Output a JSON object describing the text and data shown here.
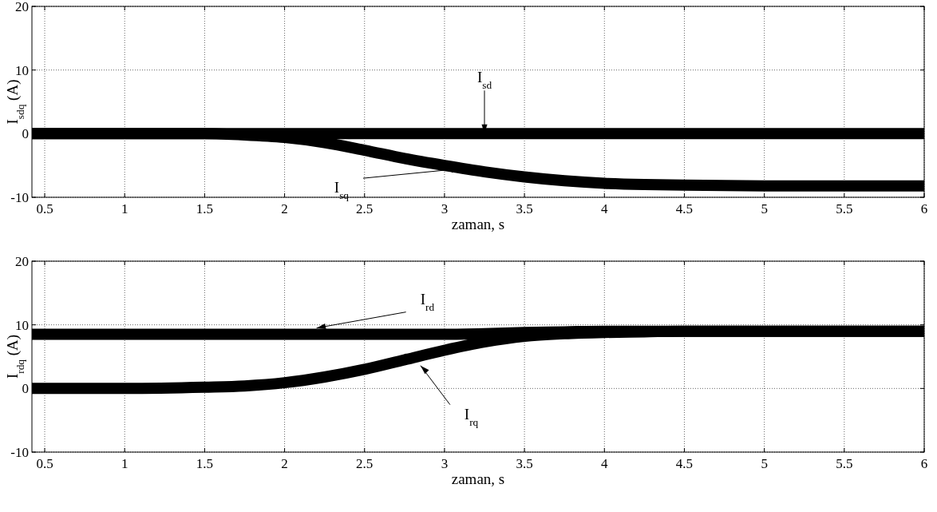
{
  "chart_data": [
    {
      "type": "line",
      "ylabel": "I$_{sdq}$ (A)",
      "xlabel": "zaman, s",
      "xlim": [
        0.42,
        6
      ],
      "ylim": [
        -10,
        20
      ],
      "xticks": [
        0.5,
        1,
        1.5,
        2,
        2.5,
        3,
        3.5,
        4,
        4.5,
        5,
        5.5,
        6
      ],
      "yticks": [
        -10,
        0,
        10,
        20
      ],
      "grid": true,
      "line_style": "solid",
      "marker": "none",
      "x": [
        0.42,
        0.5,
        1,
        1.5,
        1.75,
        2,
        2.25,
        2.5,
        2.75,
        3,
        3.25,
        3.5,
        3.75,
        4,
        4.25,
        4.5,
        5,
        5.5,
        6
      ],
      "series": [
        {
          "color": "#000000",
          "values": [
            0,
            0,
            0,
            0,
            0,
            0,
            0,
            0,
            0,
            0,
            0,
            0,
            0,
            0,
            0,
            0,
            0,
            0,
            0
          ]
        },
        {
          "color": "#000000",
          "values": [
            0,
            0,
            0,
            0,
            -0.2,
            -0.6,
            -1.4,
            -2.6,
            -3.9,
            -5,
            -6,
            -6.8,
            -7.4,
            -7.8,
            -8,
            -8.1,
            -8.2,
            -8.2,
            -8.2
          ]
        }
      ],
      "annotations": [
        {
          "text": "I$_{sd}$",
          "x": 3.25,
          "y": 0
        },
        {
          "text": "I$_{sq}$",
          "x": 3.1,
          "y": -5.5
        }
      ]
    },
    {
      "type": "line",
      "ylabel": "I$_{rdq}$ (A)",
      "xlabel": "zaman, s",
      "xlim": [
        0.42,
        6
      ],
      "ylim": [
        -10,
        20
      ],
      "xticks": [
        0.5,
        1,
        1.5,
        2,
        2.5,
        3,
        3.5,
        4,
        4.5,
        5,
        5.5,
        6
      ],
      "yticks": [
        -10,
        0,
        10,
        20
      ],
      "grid": true,
      "line_style": "solid",
      "marker": "none",
      "x": [
        0.42,
        0.5,
        1,
        1.5,
        1.75,
        2,
        2.25,
        2.5,
        2.75,
        3,
        3.25,
        3.5,
        3.75,
        4,
        4.25,
        4.5,
        5,
        5.5,
        6
      ],
      "series": [
        {
          "color": "#000000",
          "values": [
            8.5,
            8.5,
            8.5,
            8.5,
            8.5,
            8.5,
            8.5,
            8.5,
            8.5,
            8.5,
            8.6,
            8.8,
            8.9,
            9,
            9,
            9,
            9,
            9,
            9
          ]
        },
        {
          "color": "#000000",
          "values": [
            0,
            0,
            0,
            0.2,
            0.4,
            0.9,
            1.8,
            3,
            4.5,
            6,
            7.3,
            8.2,
            8.6,
            8.8,
            8.9,
            9,
            9,
            9,
            9
          ]
        }
      ],
      "annotations": [
        {
          "text": "I$_{rd}$",
          "x": 2.2,
          "y": 9.5
        },
        {
          "text": "I$_{rq}$",
          "x": 2.85,
          "y": 3.6
        }
      ]
    }
  ]
}
